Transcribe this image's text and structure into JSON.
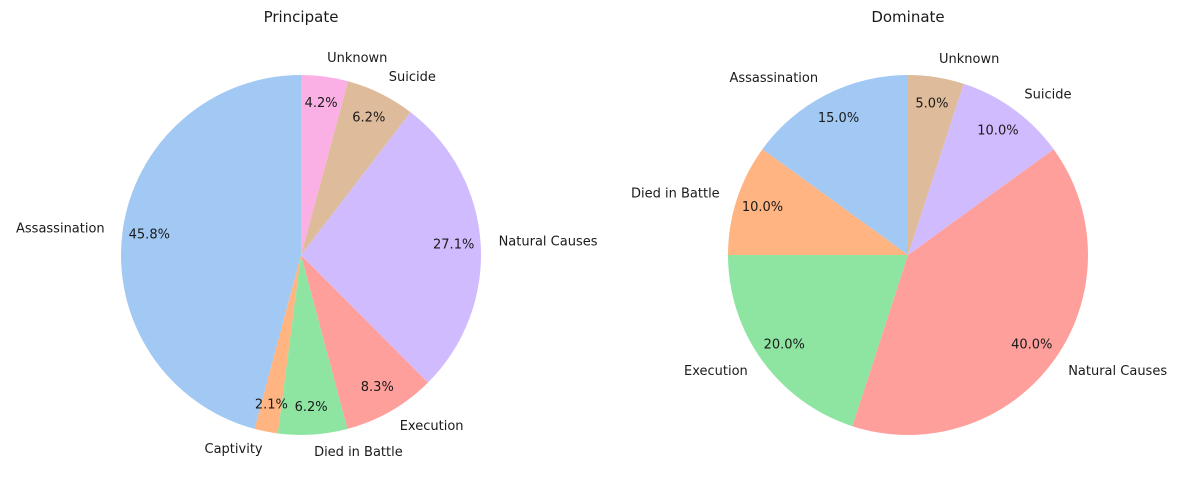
{
  "chart_data": [
    {
      "type": "pie",
      "title": "Principate",
      "categories": [
        "Assassination",
        "Captivity",
        "Died in Battle",
        "Execution",
        "Natural Causes",
        "Suicide",
        "Unknown"
      ],
      "values": [
        45.8,
        2.1,
        6.2,
        8.3,
        27.1,
        6.2,
        4.2
      ],
      "value_labels": [
        "45.8%",
        "2.1%",
        "6.2%",
        "8.3%",
        "27.1%",
        "6.2%",
        "4.2%"
      ],
      "colors": [
        "#a1c9f4",
        "#ffb482",
        "#8de5a1",
        "#ff9f9b",
        "#d0bbff",
        "#debb9b",
        "#fab0e4"
      ],
      "start_angle_deg": 90,
      "direction": "counterclockwise"
    },
    {
      "type": "pie",
      "title": "Dominate",
      "categories": [
        "Assassination",
        "Died in Battle",
        "Execution",
        "Natural Causes",
        "Suicide",
        "Unknown"
      ],
      "values": [
        15.0,
        10.0,
        20.0,
        40.0,
        10.0,
        5.0
      ],
      "value_labels": [
        "15.0%",
        "10.0%",
        "20.0%",
        "40.0%",
        "10.0%",
        "5.0%"
      ],
      "colors": [
        "#a1c9f4",
        "#ffb482",
        "#8de5a1",
        "#ff9f9b",
        "#d0bbff",
        "#debb9b"
      ],
      "start_angle_deg": 90,
      "direction": "counterclockwise"
    }
  ]
}
